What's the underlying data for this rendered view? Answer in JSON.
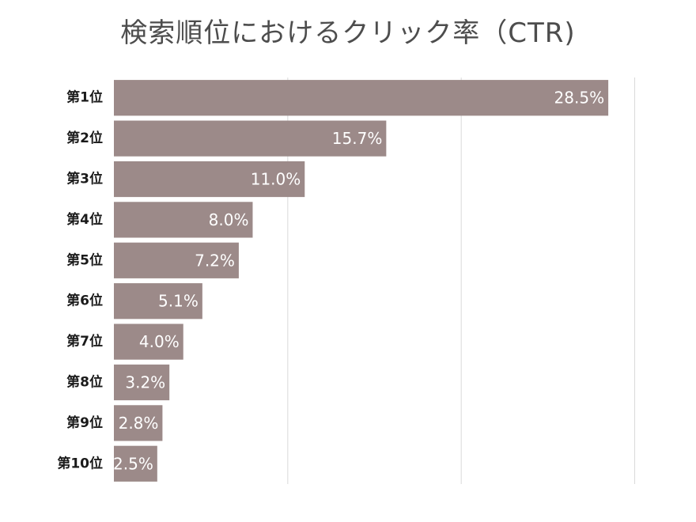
{
  "chart_data": {
    "type": "bar",
    "orientation": "horizontal",
    "title": "検索順位におけるクリック率（CTR)",
    "categories": [
      "第1位",
      "第2位",
      "第3位",
      "第4位",
      "第5位",
      "第6位",
      "第7位",
      "第8位",
      "第9位",
      "第10位"
    ],
    "values": [
      28.5,
      15.7,
      11.0,
      8.0,
      7.2,
      5.1,
      4.0,
      3.2,
      2.8,
      2.5
    ],
    "value_labels": [
      "28.5%",
      "15.7%",
      "11.0%",
      "8.0%",
      "7.2%",
      "5.1%",
      "4.0%",
      "3.2%",
      "2.8%",
      "2.5%"
    ],
    "xlim": [
      0,
      30
    ],
    "gridlines_at": [
      0,
      10,
      20,
      30
    ],
    "grid": true,
    "xlabel": "",
    "ylabel": "",
    "bar_color": "#9c8a89",
    "label_color": "#ffffff"
  }
}
